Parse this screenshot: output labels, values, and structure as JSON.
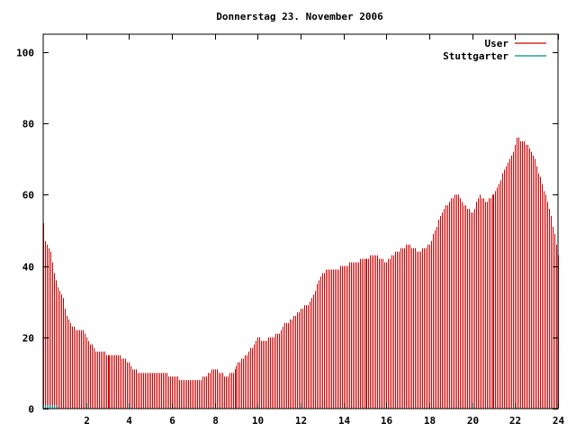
{
  "chart_data": {
    "type": "bar",
    "title": "Donnerstag 23. November 2006",
    "xlabel": "",
    "ylabel": "",
    "xlim": [
      0,
      24
    ],
    "ylim": [
      0,
      105
    ],
    "x_ticks": [
      "2",
      "4",
      "6",
      "8",
      "10",
      "12",
      "14",
      "16",
      "18",
      "20",
      "22",
      "24"
    ],
    "y_ticks": [
      "0",
      "20",
      "40",
      "60",
      "80",
      "100"
    ],
    "grid": false,
    "legend_position": "top-right",
    "bar_interval_minutes": 5,
    "series": [
      {
        "name": "User",
        "color": "#cc0000",
        "keyframes": [
          [
            0.0,
            52
          ],
          [
            0.1,
            46
          ],
          [
            0.3,
            45
          ],
          [
            0.4,
            42
          ],
          [
            0.5,
            38
          ],
          [
            0.6,
            35
          ],
          [
            0.7,
            33
          ],
          [
            0.9,
            31
          ],
          [
            1.0,
            28
          ],
          [
            1.1,
            26
          ],
          [
            1.2,
            24
          ],
          [
            1.4,
            23
          ],
          [
            1.5,
            22
          ],
          [
            1.8,
            22
          ],
          [
            2.0,
            20
          ],
          [
            2.2,
            18
          ],
          [
            2.4,
            16
          ],
          [
            2.7,
            16
          ],
          [
            3.0,
            15
          ],
          [
            3.5,
            15
          ],
          [
            4.0,
            13
          ],
          [
            4.2,
            11
          ],
          [
            4.5,
            10
          ],
          [
            5.0,
            10
          ],
          [
            5.5,
            10
          ],
          [
            6.0,
            9
          ],
          [
            6.5,
            8
          ],
          [
            7.0,
            8
          ],
          [
            7.3,
            8
          ],
          [
            7.5,
            9
          ],
          [
            7.7,
            10
          ],
          [
            7.8,
            11
          ],
          [
            8.0,
            11
          ],
          [
            8.2,
            10
          ],
          [
            8.5,
            9
          ],
          [
            8.8,
            10
          ],
          [
            9.0,
            12
          ],
          [
            9.3,
            14
          ],
          [
            9.6,
            16
          ],
          [
            9.8,
            18
          ],
          [
            10.0,
            20
          ],
          [
            10.3,
            19
          ],
          [
            10.6,
            20
          ],
          [
            11.0,
            21
          ],
          [
            11.3,
            24
          ],
          [
            11.6,
            25
          ],
          [
            12.0,
            28
          ],
          [
            12.3,
            29
          ],
          [
            12.6,
            32
          ],
          [
            12.8,
            36
          ],
          [
            13.0,
            38
          ],
          [
            13.3,
            39
          ],
          [
            13.6,
            39
          ],
          [
            14.0,
            40
          ],
          [
            14.5,
            41
          ],
          [
            15.0,
            42
          ],
          [
            15.5,
            43
          ],
          [
            16.0,
            41
          ],
          [
            16.3,
            43
          ],
          [
            16.7,
            45
          ],
          [
            17.0,
            46
          ],
          [
            17.5,
            44
          ],
          [
            18.0,
            46
          ],
          [
            18.3,
            51
          ],
          [
            18.6,
            55
          ],
          [
            19.0,
            59
          ],
          [
            19.3,
            60
          ],
          [
            19.6,
            57
          ],
          [
            20.0,
            55
          ],
          [
            20.3,
            60
          ],
          [
            20.6,
            58
          ],
          [
            21.0,
            60
          ],
          [
            21.3,
            64
          ],
          [
            21.6,
            68
          ],
          [
            21.9,
            72
          ],
          [
            22.1,
            76
          ],
          [
            22.3,
            75
          ],
          [
            22.6,
            74
          ],
          [
            22.9,
            70
          ],
          [
            23.2,
            64
          ],
          [
            23.5,
            58
          ],
          [
            23.8,
            50
          ],
          [
            24.0,
            43
          ]
        ]
      },
      {
        "name": "Stuttgarter",
        "color": "#008b8b",
        "keyframes": [
          [
            0.0,
            1
          ],
          [
            0.6,
            1
          ],
          [
            0.7,
            0
          ],
          [
            24.0,
            0
          ]
        ]
      }
    ]
  }
}
